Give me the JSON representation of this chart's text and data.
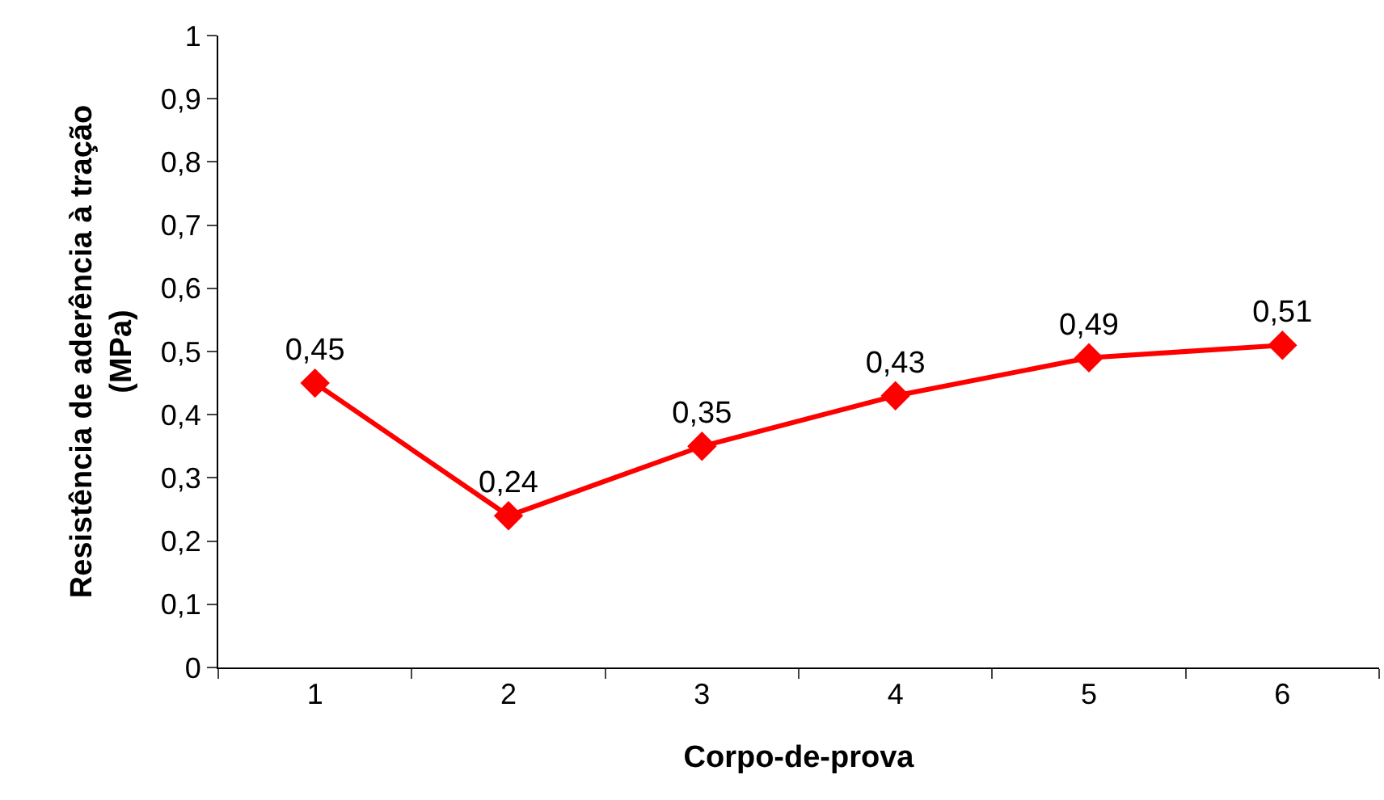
{
  "chart_data": {
    "type": "line",
    "xlabel": "Corpo-de-prova",
    "ylabel": "Resistência de aderência à tração\n(MPa)",
    "categories": [
      "1",
      "2",
      "3",
      "4",
      "5",
      "6"
    ],
    "series": [
      {
        "color": "#ff0000",
        "values": [
          0.45,
          0.24,
          0.35,
          0.43,
          0.49,
          0.51
        ],
        "value_labels": [
          "0,45",
          "0,24",
          "0,35",
          "0,43",
          "0,49",
          "0,51"
        ]
      }
    ],
    "ylim": [
      0,
      1
    ],
    "yticks": [
      0,
      {
        "value": 0.1,
        "label": "0,1"
      },
      {
        "value": 0.2,
        "label": "0,2"
      },
      {
        "value": 0.3,
        "label": "0,3"
      },
      {
        "value": 0.4,
        "label": "0,4"
      },
      {
        "value": 0.5,
        "label": "0,5"
      },
      {
        "value": 0.6,
        "label": "0,6"
      },
      {
        "value": 0.7,
        "label": "0,7"
      },
      {
        "value": 0.8,
        "label": "0,8"
      },
      {
        "value": 0.9,
        "label": "0,9"
      },
      1
    ],
    "grid": false,
    "legend": false,
    "marker": "diamond",
    "line_style": "solid"
  }
}
